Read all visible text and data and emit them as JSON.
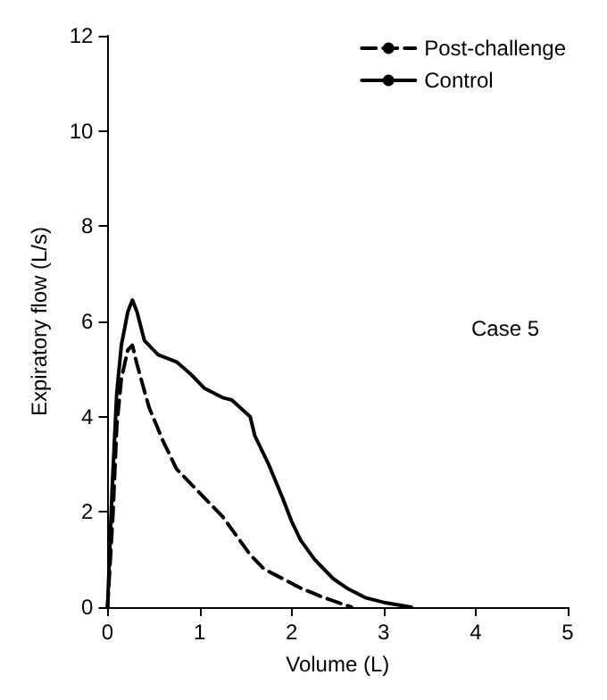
{
  "chart_data": {
    "type": "line",
    "xlabel": "Volume (L)",
    "ylabel": "Expiratory flow (L/s)",
    "xlim": [
      0,
      5
    ],
    "ylim": [
      0,
      12
    ],
    "xticks": [
      0,
      1,
      2,
      3,
      4,
      5
    ],
    "yticks": [
      0,
      2,
      4,
      6,
      8,
      10,
      12
    ],
    "grid": false,
    "legend": "top right",
    "marker": "none",
    "annotations": [
      "Case 5"
    ],
    "series": [
      {
        "name": "Post-challenge",
        "color": "#000000",
        "line_style": "dashed",
        "x": [
          0,
          0.06,
          0.1,
          0.15,
          0.22,
          0.27,
          0.32,
          0.45,
          0.6,
          0.75,
          0.9,
          1.05,
          1.25,
          1.4,
          1.55,
          1.7,
          1.9,
          2.1,
          2.35,
          2.65
        ],
        "values": [
          0,
          2,
          3.8,
          4.8,
          5.4,
          5.5,
          5.1,
          4.2,
          3.5,
          2.9,
          2.6,
          2.3,
          1.9,
          1.5,
          1.1,
          0.8,
          0.6,
          0.4,
          0.2,
          0
        ]
      },
      {
        "name": "Control",
        "color": "#000000",
        "line_style": "solid",
        "x": [
          0,
          0.05,
          0.1,
          0.15,
          0.22,
          0.27,
          0.32,
          0.4,
          0.55,
          0.75,
          0.9,
          1.05,
          1.25,
          1.35,
          1.55,
          1.6,
          1.75,
          1.9,
          2.0,
          2.1,
          2.25,
          2.45,
          2.6,
          2.8,
          3.0,
          3.3
        ],
        "values": [
          0,
          2.5,
          4.5,
          5.5,
          6.2,
          6.45,
          6.2,
          5.6,
          5.3,
          5.15,
          4.9,
          4.6,
          4.4,
          4.35,
          4.0,
          3.6,
          3.0,
          2.3,
          1.8,
          1.4,
          1.0,
          0.6,
          0.4,
          0.2,
          0.1,
          0
        ]
      }
    ]
  }
}
